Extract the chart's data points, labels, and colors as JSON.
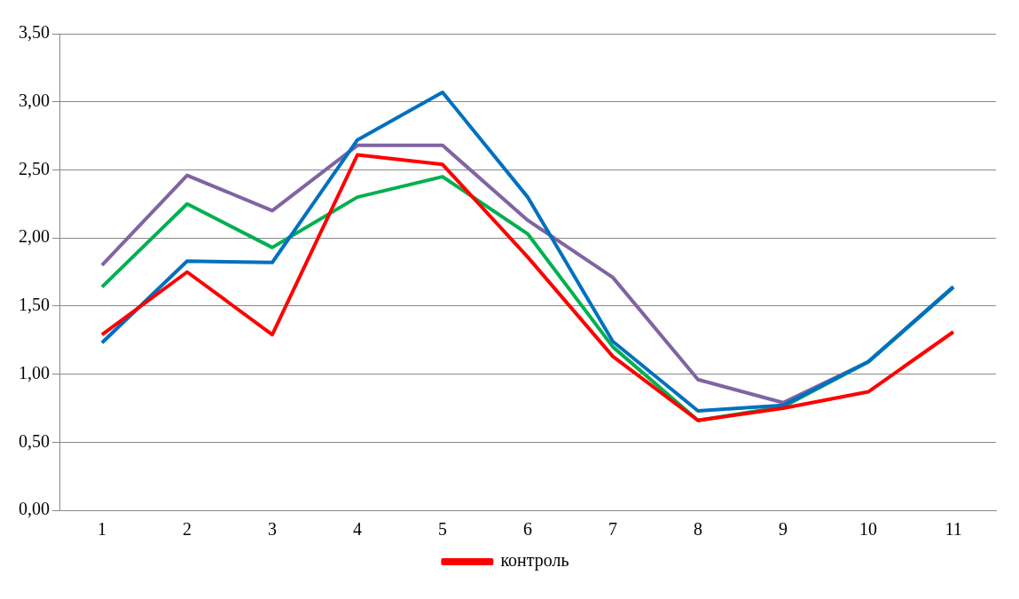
{
  "chart_data": {
    "type": "line",
    "categories": [
      "1",
      "2",
      "3",
      "4",
      "5",
      "6",
      "7",
      "8",
      "9",
      "10",
      "11"
    ],
    "series": [
      {
        "name": "контроль",
        "color": "#ff0000",
        "values": [
          1.29,
          1.75,
          1.29,
          2.61,
          2.54,
          1.86,
          1.13,
          0.66,
          0.75,
          0.87,
          1.31
        ]
      },
      {
        "color": "#0070c0",
        "values": [
          1.23,
          1.83,
          1.82,
          2.72,
          3.07,
          2.3,
          1.24,
          0.73,
          0.77,
          1.09,
          1.64
        ]
      },
      {
        "color": "#00b050",
        "values": [
          1.64,
          2.25,
          1.93,
          2.3,
          2.45,
          2.03,
          1.2,
          0.66,
          0.76,
          1.09,
          1.64
        ]
      },
      {
        "color": "#8064a2",
        "values": [
          1.8,
          2.46,
          2.2,
          2.68,
          2.68,
          2.13,
          1.71,
          0.96,
          0.79,
          1.09,
          1.64
        ]
      }
    ],
    "ylim": [
      0,
      3.5
    ],
    "yticks": [
      {
        "value": 0,
        "label": "0,00"
      },
      {
        "value": 0.5,
        "label": "0,50"
      },
      {
        "value": 1,
        "label": "1,00"
      },
      {
        "value": 1.5,
        "label": "1,50"
      },
      {
        "value": 2,
        "label": "2,00"
      },
      {
        "value": 2.5,
        "label": "2,50"
      },
      {
        "value": 3,
        "label": "3,00"
      },
      {
        "value": 3.5,
        "label": "3,50"
      }
    ],
    "grid": "y",
    "legend": "bottom",
    "marker": "none",
    "line_style": "solid"
  }
}
